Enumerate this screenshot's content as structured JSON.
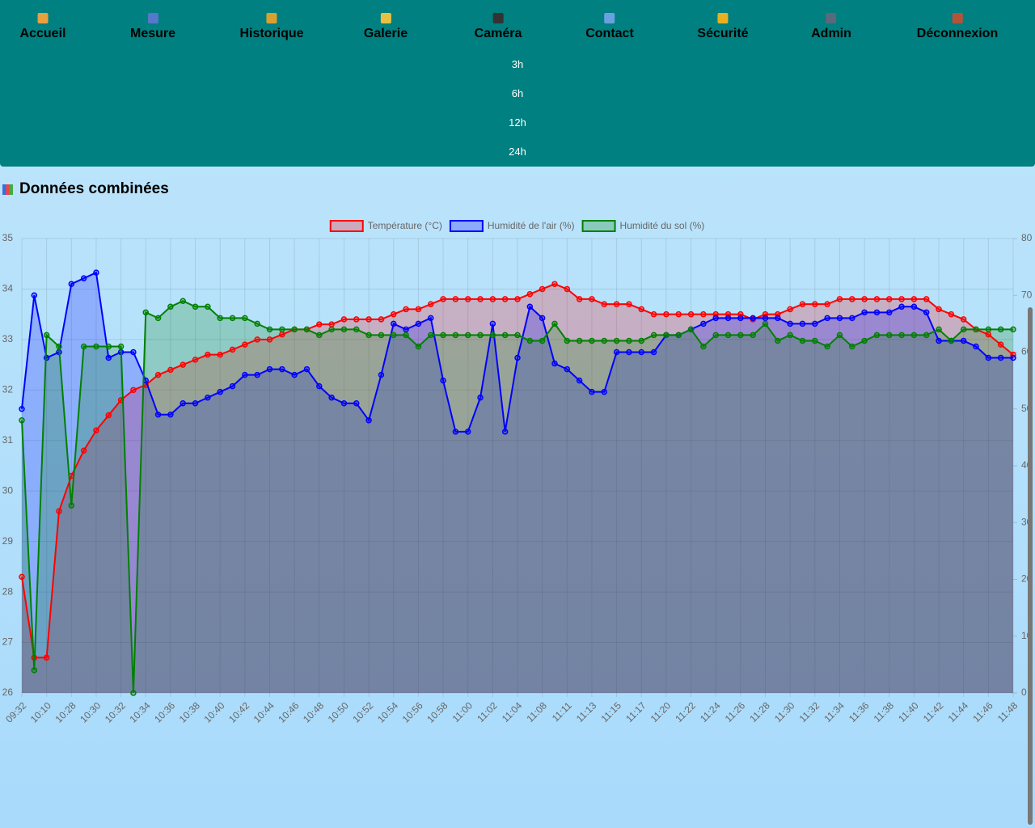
{
  "nav": {
    "items": [
      "Accueil",
      "Mesure",
      "Historique",
      "Galerie",
      "Caméra",
      "Contact",
      "Sécurité",
      "Admin",
      "Déconnexion"
    ]
  },
  "ranges": [
    "3h",
    "6h",
    "12h",
    "24h"
  ],
  "heading": "Données combinées",
  "chart_data": {
    "type": "line",
    "categories": [
      "09:32",
      null,
      "10:10",
      null,
      "10:28",
      null,
      "10:30",
      null,
      "10:32",
      null,
      "10:34",
      null,
      "10:36",
      null,
      "10:38",
      null,
      "10:40",
      null,
      "10:42",
      null,
      "10:44",
      null,
      "10:46",
      null,
      "10:48",
      null,
      "10:50",
      null,
      "10:52",
      null,
      "10:54",
      null,
      "10:56",
      null,
      "10:58",
      null,
      "11:00",
      null,
      "11:02",
      null,
      "11:04",
      null,
      "11:08",
      null,
      "11:11",
      null,
      "11:13",
      null,
      "11:15",
      null,
      "11:17",
      null,
      "11:20",
      null,
      "11:22",
      null,
      "11:24",
      null,
      "11:26",
      null,
      "11:28",
      null,
      "11:30",
      null,
      "11:32",
      null,
      "11:34",
      null,
      "11:36",
      null,
      "11:38",
      null,
      "11:40",
      null,
      "11:42",
      null,
      "11:44",
      null,
      "11:46",
      null,
      "11:48"
    ],
    "series": [
      {
        "name": "Température (°C)",
        "color": "#ff0000",
        "axis": "y",
        "values": [
          28.3,
          26.7,
          26.7,
          29.6,
          30.3,
          30.8,
          31.2,
          31.5,
          31.8,
          32.0,
          32.1,
          32.3,
          32.4,
          32.5,
          32.6,
          32.7,
          32.7,
          32.8,
          32.9,
          33.0,
          33.0,
          33.1,
          33.2,
          33.2,
          33.3,
          33.3,
          33.4,
          33.4,
          33.4,
          33.4,
          33.5,
          33.6,
          33.6,
          33.7,
          33.8,
          33.8,
          33.8,
          33.8,
          33.8,
          33.8,
          33.8,
          33.9,
          34.0,
          34.1,
          34.0,
          33.8,
          33.8,
          33.7,
          33.7,
          33.7,
          33.6,
          33.5,
          33.5,
          33.5,
          33.5,
          33.5,
          33.5,
          33.5,
          33.5,
          33.4,
          33.5,
          33.5,
          33.6,
          33.7,
          33.7,
          33.7,
          33.8,
          33.8,
          33.8,
          33.8,
          33.8,
          33.8,
          33.8,
          33.8,
          33.6,
          33.5,
          33.4,
          33.2,
          33.1,
          32.9,
          32.7
        ]
      },
      {
        "name": "Humidité de l'air (%)",
        "color": "#0000ff",
        "axis": "y2",
        "values": [
          50,
          70,
          59,
          60,
          72,
          73,
          74,
          59,
          60,
          60,
          55,
          49,
          49,
          51,
          51,
          52,
          53,
          54,
          56,
          56,
          57,
          57,
          56,
          57,
          54,
          52,
          51,
          51,
          48,
          56,
          65,
          64,
          65,
          66,
          55,
          46,
          46,
          52,
          65,
          46,
          59,
          68,
          66,
          58,
          57,
          55,
          53,
          53,
          60,
          60,
          60,
          60,
          63,
          63,
          64,
          65,
          66,
          66,
          66,
          66,
          66,
          66,
          65,
          65,
          65,
          66,
          66,
          66,
          67,
          67,
          67,
          68,
          68,
          67,
          62,
          62,
          62,
          61,
          59,
          59,
          59
        ]
      },
      {
        "name": "Humidité du sol (%)",
        "color": "#008000",
        "axis": "y2",
        "values": [
          48,
          4,
          63,
          61,
          33,
          61,
          61,
          61,
          61,
          0,
          67,
          66,
          68,
          69,
          68,
          68,
          66,
          66,
          66,
          65,
          64,
          64,
          64,
          64,
          63,
          64,
          64,
          64,
          63,
          63,
          63,
          63,
          61,
          63,
          63,
          63,
          63,
          63,
          63,
          63,
          63,
          62,
          62,
          65,
          62,
          62,
          62,
          62,
          62,
          62,
          62,
          63,
          63,
          63,
          64,
          61,
          63,
          63,
          63,
          63,
          65,
          62,
          63,
          62,
          62,
          61,
          63,
          61,
          62,
          63,
          63,
          63,
          63,
          63,
          64,
          62,
          64,
          64,
          64,
          64,
          64
        ]
      }
    ],
    "ylim": [
      26,
      35
    ],
    "yticks": [
      26,
      27,
      28,
      29,
      30,
      31,
      32,
      33,
      34,
      35
    ],
    "y2lim": [
      0,
      80
    ],
    "y2ticks": [
      0,
      10,
      20,
      30,
      40,
      50,
      60,
      70,
      80
    ],
    "grid": true,
    "legend": "top"
  }
}
